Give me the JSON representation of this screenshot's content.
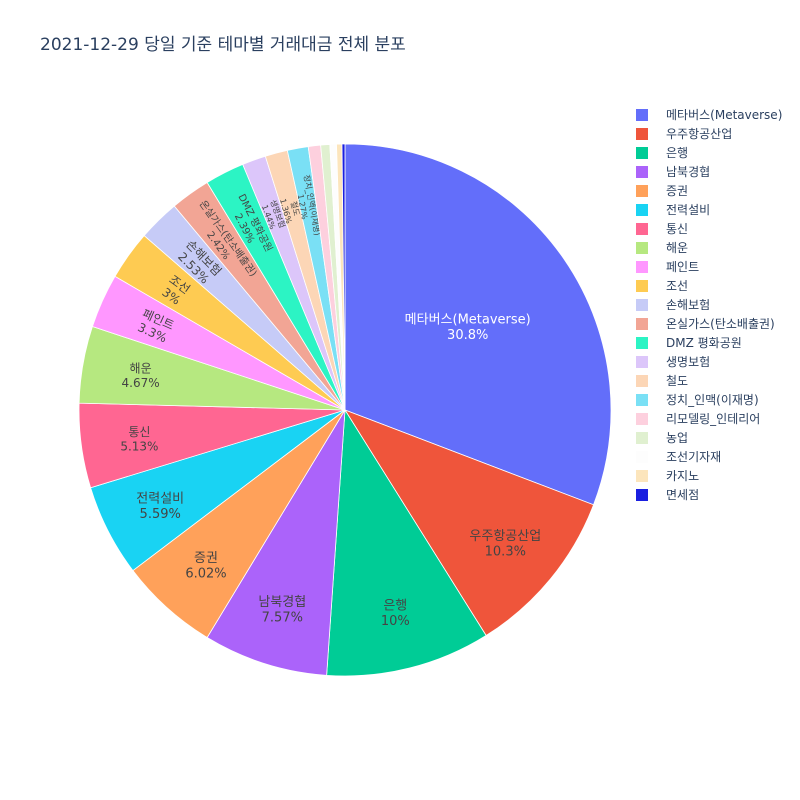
{
  "chart_data": {
    "type": "pie",
    "title": "2021-12-29 당일 기준 테마별 거래대금 전체 분포",
    "labels": [
      "메타버스(Metaverse)",
      "우주항공산업",
      "은행",
      "남북경협",
      "증권",
      "전력설비",
      "통신",
      "해운",
      "페인트",
      "조선",
      "손해보험",
      "온실가스(탄소배출권)",
      "DMZ 평화공원",
      "생명보험",
      "철도",
      "정치_인맥(이재명)",
      "리모델링_인테리어",
      "농업",
      "조선기자재",
      "카지노",
      "면세점"
    ],
    "values": [
      30.8,
      10.3,
      10.0,
      7.57,
      6.02,
      5.59,
      5.13,
      4.67,
      3.3,
      3.0,
      2.53,
      2.42,
      2.39,
      1.44,
      1.36,
      1.27,
      0.75,
      0.55,
      0.4,
      0.33,
      0.18
    ],
    "colors": [
      "#636efa",
      "#EF553B",
      "#00cc96",
      "#ab63fa",
      "#FFA15A",
      "#19d3f3",
      "#FF6692",
      "#B6E880",
      "#FF97FF",
      "#FECB52",
      "#c6cbf7",
      "#f2a595",
      "#2cf4c4",
      "#dcc6fa",
      "#fcd6b6",
      "#7ae0f5",
      "#fdd0de",
      "#e0f0d0",
      "#fdfdfd",
      "#fce5bc",
      "#1a1fe0"
    ],
    "percent_labels": [
      "30.8%",
      "10.3%",
      "10%",
      "7.57%",
      "6.02%",
      "5.59%",
      "5.13%",
      "4.67%",
      "3.3%",
      "3%",
      "2.53%",
      "2.42%",
      "2.39%",
      "1.44%",
      "1.36%",
      "1.27%",
      "",
      "",
      "",
      "",
      ""
    ],
    "legend_position": "top-right",
    "direction": "clockwise",
    "start": "12 o'clock"
  }
}
